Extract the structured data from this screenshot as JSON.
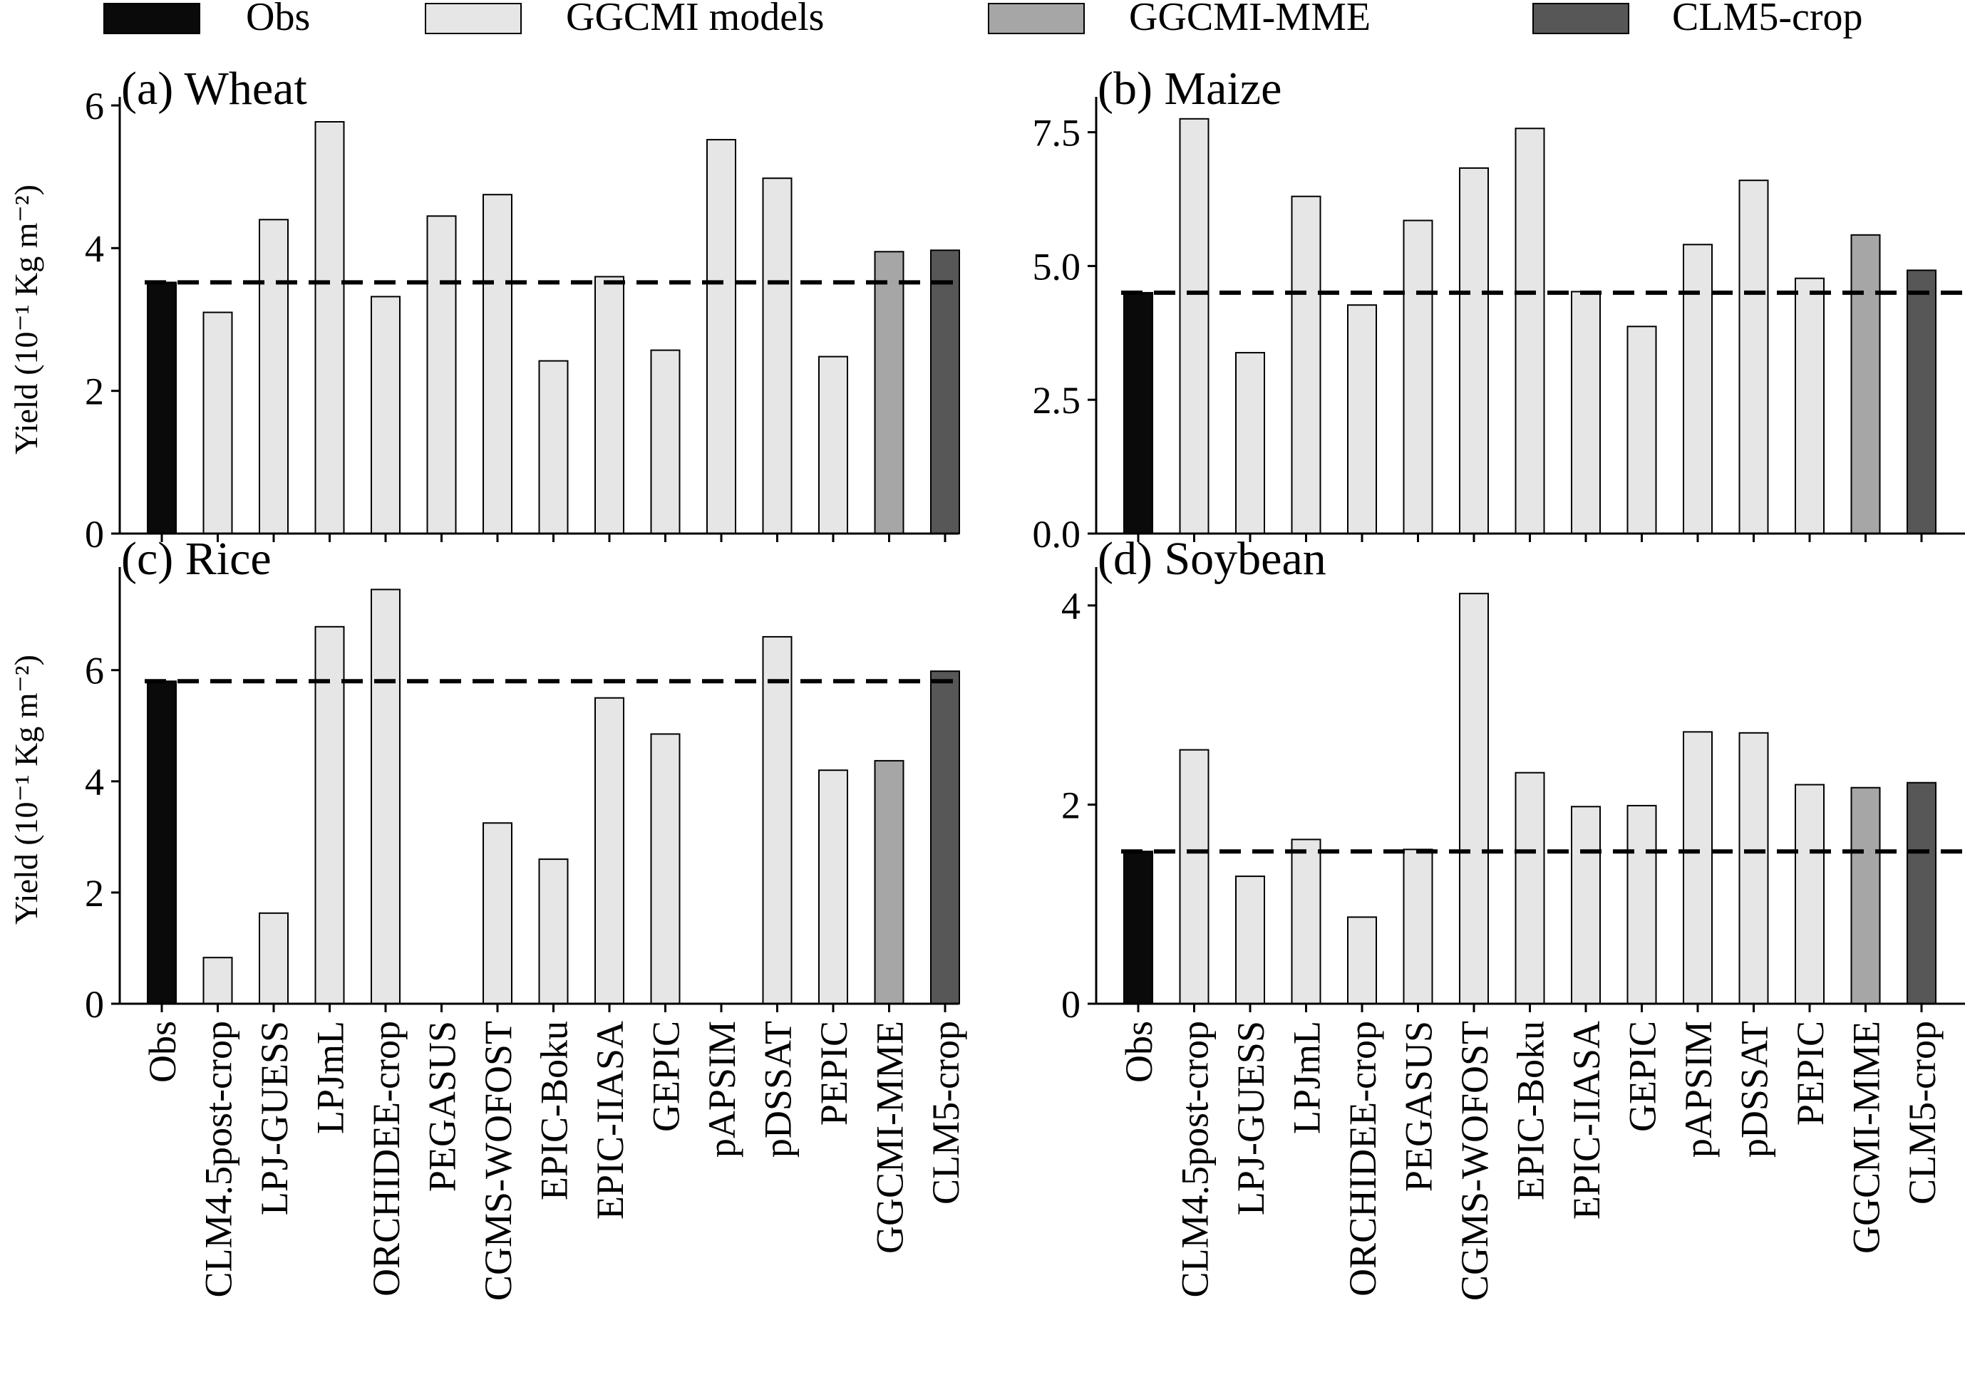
{
  "legend": {
    "items": [
      {
        "label": "Obs",
        "color": "#0a0a0a"
      },
      {
        "label": "GGCMI models",
        "color": "#e6e6e6"
      },
      {
        "label": "GGCMI-MME",
        "color": "#a6a6a6"
      },
      {
        "label": "CLM5-crop",
        "color": "#575757"
      }
    ]
  },
  "chart_data": [
    {
      "type": "bar",
      "title": "(a) Wheat",
      "ylabel": "Yield (10⁻¹ Kg m⁻²)",
      "ylim": [
        0,
        6.0
      ],
      "yticks": [
        0,
        2,
        4,
        6
      ],
      "ytick_labels": [
        "0",
        "2",
        "4",
        "6"
      ],
      "categories": [
        "Obs",
        "CLM4.5post-crop",
        "LPJ-GUESS",
        "LPJmL",
        "ORCHIDEE-crop",
        "PEGASUS",
        "CGMS-WOFOST",
        "EPIC-Boku",
        "EPIC-IIASA",
        "GEPIC",
        "pAPSIM",
        "pDSSAT",
        "PEPIC",
        "GGCMI-MME",
        "CLM5-crop"
      ],
      "values": [
        3.52,
        3.1,
        4.4,
        5.77,
        3.32,
        4.45,
        4.75,
        2.42,
        3.6,
        2.57,
        5.52,
        4.98,
        2.48,
        3.95,
        3.97
      ],
      "obs_reference": 3.52,
      "show_xticklabels": false
    },
    {
      "type": "bar",
      "title": "(b) Maize",
      "ylabel": "",
      "ylim": [
        0,
        8.0
      ],
      "yticks": [
        0,
        2.5,
        5.0,
        7.5
      ],
      "ytick_labels": [
        "0.0",
        "2.5",
        "5.0",
        "7.5"
      ],
      "categories": [
        "Obs",
        "CLM4.5post-crop",
        "LPJ-GUESS",
        "LPJmL",
        "ORCHIDEE-crop",
        "PEGASUS",
        "CGMS-WOFOST",
        "EPIC-Boku",
        "EPIC-IIASA",
        "GEPIC",
        "pAPSIM",
        "pDSSAT",
        "PEPIC",
        "GGCMI-MME",
        "CLM5-crop"
      ],
      "values": [
        4.5,
        7.75,
        3.38,
        6.3,
        4.27,
        5.85,
        6.83,
        7.57,
        4.52,
        3.87,
        5.4,
        6.6,
        4.77,
        5.58,
        4.92
      ],
      "obs_reference": 4.5,
      "show_xticklabels": false
    },
    {
      "type": "bar",
      "title": "(c) Rice",
      "ylabel": "Yield (10⁻¹ Kg m⁻²)",
      "ylim": [
        0,
        7.7
      ],
      "yticks": [
        0,
        2,
        4,
        6
      ],
      "ytick_labels": [
        "0",
        "2",
        "4",
        "6"
      ],
      "categories": [
        "Obs",
        "CLM4.5post-crop",
        "LPJ-GUESS",
        "LPJmL",
        "ORCHIDEE-crop",
        "PEGASUS",
        "CGMS-WOFOST",
        "EPIC-Boku",
        "EPIC-IIASA",
        "GEPIC",
        "pAPSIM",
        "pDSSAT",
        "PEPIC",
        "GGCMI-MME",
        "CLM5-crop"
      ],
      "values": [
        5.8,
        0.83,
        1.63,
        6.78,
        7.45,
        0,
        3.25,
        2.6,
        5.5,
        4.85,
        0,
        6.6,
        4.2,
        4.37,
        5.98
      ],
      "obs_reference": 5.8,
      "show_xticklabels": true
    },
    {
      "type": "bar",
      "title": "(d) Soybean",
      "ylabel": "",
      "ylim": [
        0,
        4.3
      ],
      "yticks": [
        0,
        2,
        4
      ],
      "ytick_labels": [
        "0",
        "2",
        "4"
      ],
      "categories": [
        "Obs",
        "CLM4.5post-crop",
        "LPJ-GUESS",
        "LPJmL",
        "ORCHIDEE-crop",
        "PEGASUS",
        "CGMS-WOFOST",
        "EPIC-Boku",
        "EPIC-IIASA",
        "GEPIC",
        "pAPSIM",
        "pDSSAT",
        "PEPIC",
        "GGCMI-MME",
        "CLM5-crop"
      ],
      "values": [
        1.53,
        2.55,
        1.28,
        1.65,
        0.87,
        1.55,
        4.12,
        2.32,
        1.98,
        1.99,
        2.73,
        2.72,
        2.2,
        2.17,
        2.22
      ],
      "obs_reference": 1.53,
      "show_xticklabels": true
    }
  ]
}
